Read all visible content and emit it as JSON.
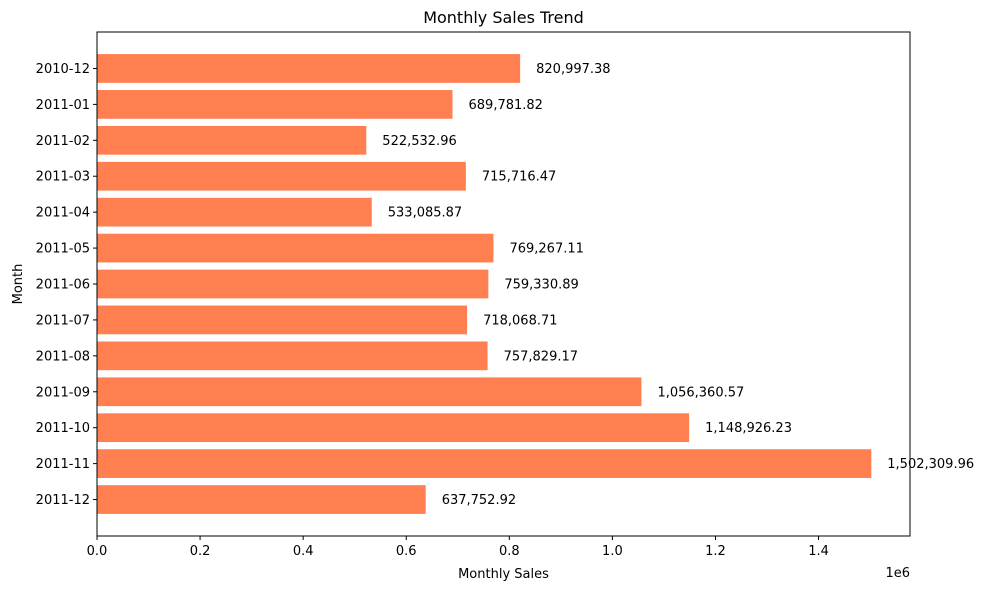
{
  "chart_data": {
    "type": "bar",
    "orientation": "horizontal",
    "title": "Monthly Sales Trend",
    "xlabel": "Monthly Sales",
    "ylabel": "Month",
    "x_offset_text": "1e6",
    "xlim": [
      0,
      1577425
    ],
    "x_ticks": [
      0,
      200000,
      400000,
      600000,
      800000,
      1000000,
      1200000,
      1400000
    ],
    "x_tick_labels": [
      "0.0",
      "0.2",
      "0.4",
      "0.6",
      "0.8",
      "1.0",
      "1.2",
      "1.4"
    ],
    "grid": false,
    "bar_color": "#FF7F50",
    "categories": [
      "2010-12",
      "2011-01",
      "2011-02",
      "2011-03",
      "2011-04",
      "2011-05",
      "2011-06",
      "2011-07",
      "2011-08",
      "2011-09",
      "2011-10",
      "2011-11",
      "2011-12"
    ],
    "values": [
      820997.38,
      689781.82,
      522532.96,
      715716.47,
      533085.87,
      769267.11,
      759330.89,
      718068.71,
      757829.17,
      1056360.57,
      1148926.23,
      1502309.96,
      637752.92
    ],
    "data_labels": [
      "820,997.38",
      "689,781.82",
      "522,532.96",
      "715,716.47",
      "533,085.87",
      "769,267.11",
      "759,330.89",
      "718,068.71",
      "757,829.17",
      "1,056,360.57",
      "1,148,926.23",
      "1,502,309.96",
      "637,752.92"
    ]
  }
}
